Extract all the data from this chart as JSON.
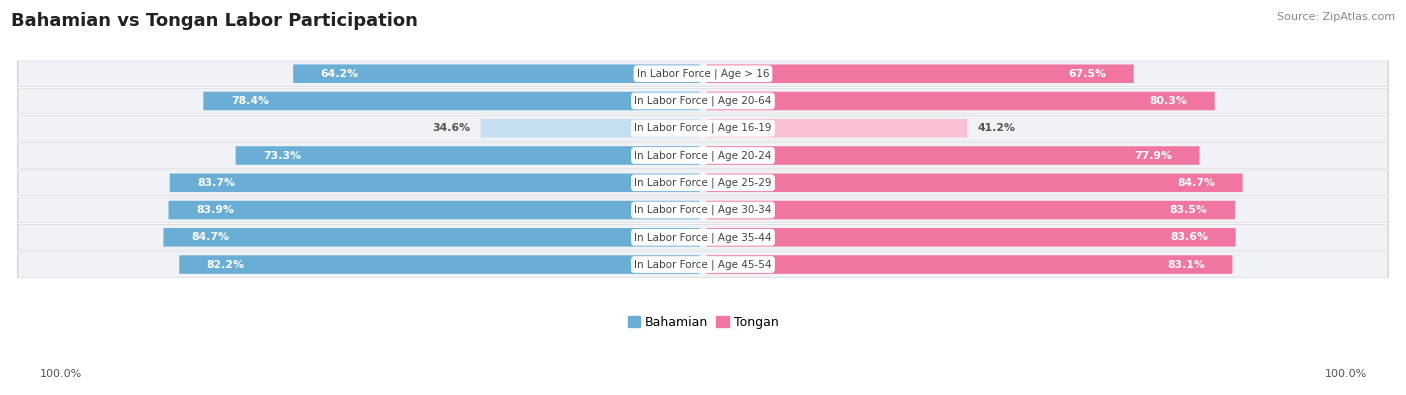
{
  "title": "Bahamian vs Tongan Labor Participation",
  "source": "Source: ZipAtlas.com",
  "categories": [
    "In Labor Force | Age > 16",
    "In Labor Force | Age 20-64",
    "In Labor Force | Age 16-19",
    "In Labor Force | Age 20-24",
    "In Labor Force | Age 25-29",
    "In Labor Force | Age 30-34",
    "In Labor Force | Age 35-44",
    "In Labor Force | Age 45-54"
  ],
  "bahamian": [
    64.2,
    78.4,
    34.6,
    73.3,
    83.7,
    83.9,
    84.7,
    82.2
  ],
  "tongan": [
    67.5,
    80.3,
    41.2,
    77.9,
    84.7,
    83.5,
    83.6,
    83.1
  ],
  "bahamian_labels": [
    "64.2%",
    "78.4%",
    "34.6%",
    "73.3%",
    "83.7%",
    "83.9%",
    "84.7%",
    "82.2%"
  ],
  "tongan_labels": [
    "67.5%",
    "80.3%",
    "41.2%",
    "77.9%",
    "84.7%",
    "83.5%",
    "83.6%",
    "83.1%"
  ],
  "bahamian_color": "#6aaed6",
  "bahamian_light_color": "#c5dff0",
  "tongan_color": "#f075a0",
  "tongan_light_color": "#f9c0d4",
  "bar_height": 0.68,
  "row_bg_color": "#e8eaed",
  "row_bg_inner_color": "#f0f2f5",
  "max_val": 100.0,
  "legend_bahamian": "Bahamian",
  "legend_tongan": "Tongan",
  "bottom_left_label": "100.0%",
  "bottom_right_label": "100.0%",
  "title_fontsize": 13,
  "source_fontsize": 8,
  "label_fontsize": 7.8,
  "cat_fontsize": 7.5
}
